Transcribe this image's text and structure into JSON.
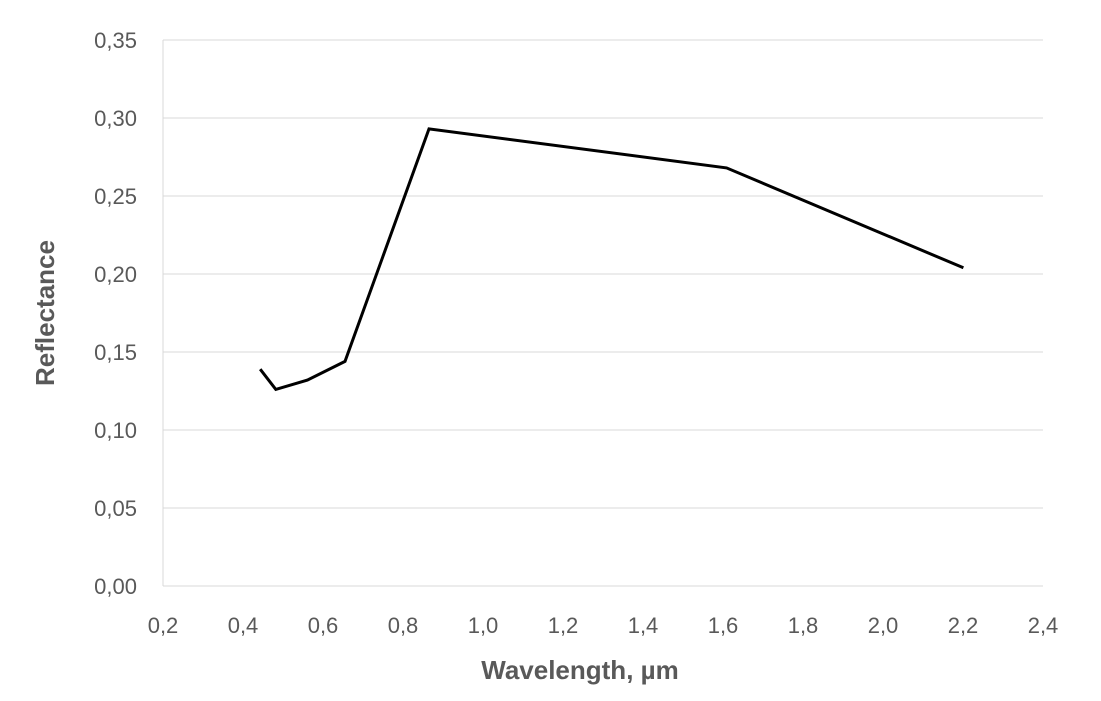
{
  "chart_data": {
    "type": "line",
    "title": "",
    "xlabel": "Wavelength, µm",
    "ylabel": "Reflectance",
    "xlim": [
      0.2,
      2.4
    ],
    "ylim": [
      0.0,
      0.35
    ],
    "x_ticks": [
      "0,2",
      "0,4",
      "0,6",
      "0,8",
      "1,0",
      "1,2",
      "1,4",
      "1,6",
      "1,8",
      "2,0",
      "2,2",
      "2,4"
    ],
    "y_ticks": [
      "0,00",
      "0,05",
      "0,10",
      "0,15",
      "0,20",
      "0,25",
      "0,30",
      "0,35"
    ],
    "grid": "horizontal",
    "legend": "none",
    "series": [
      {
        "color": "#000000",
        "x": [
          0.443,
          0.482,
          0.561,
          0.655,
          0.865,
          1.609,
          2.201
        ],
        "y": [
          0.139,
          0.126,
          0.132,
          0.144,
          0.293,
          0.268,
          0.204
        ]
      }
    ]
  }
}
